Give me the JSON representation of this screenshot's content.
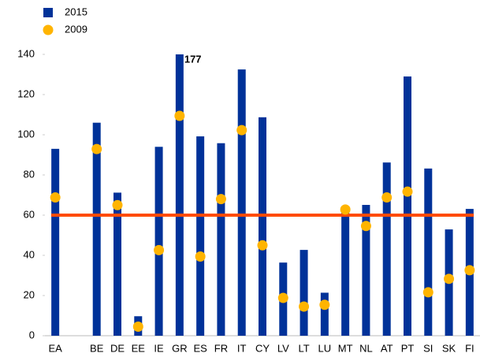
{
  "chart_data": {
    "type": "bar",
    "categories": [
      "EA",
      null,
      "BE",
      "DE",
      "EE",
      "IE",
      "GR",
      "ES",
      "FR",
      "IT",
      "CY",
      "LV",
      "LT",
      "LU",
      "MT",
      "NL",
      "AT",
      "PT",
      "SI",
      "SK",
      "FI"
    ],
    "series": [
      {
        "name": "2015",
        "color": "#003299",
        "type": "bar",
        "values": [
          93,
          null,
          106,
          71.2,
          9.7,
          94,
          177,
          99.2,
          95.8,
          132.5,
          108.7,
          36.4,
          42.7,
          21.4,
          63.9,
          65.1,
          86.2,
          129,
          83.2,
          52.9,
          63.1
        ],
        "value_labels": [
          null,
          null,
          null,
          null,
          null,
          null,
          "177",
          null,
          null,
          null,
          null,
          null,
          null,
          null,
          null,
          null,
          null,
          null,
          null,
          null,
          null
        ]
      },
      {
        "name": "2009",
        "color": "#ffb400",
        "type": "dot",
        "values": [
          68.8,
          null,
          92.9,
          65,
          4.5,
          42.6,
          109.4,
          39.4,
          68,
          102.3,
          45,
          18.8,
          14.5,
          15.4,
          62.8,
          54.6,
          68.8,
          71.7,
          21.6,
          28.3,
          32.6
        ]
      }
    ],
    "reference_line": {
      "value": 60,
      "color": "#ff4b00"
    },
    "ylim": [
      0,
      140
    ],
    "yticks": [
      0,
      20,
      40,
      60,
      80,
      100,
      120,
      140
    ],
    "grid": false,
    "legend": "top-left"
  }
}
